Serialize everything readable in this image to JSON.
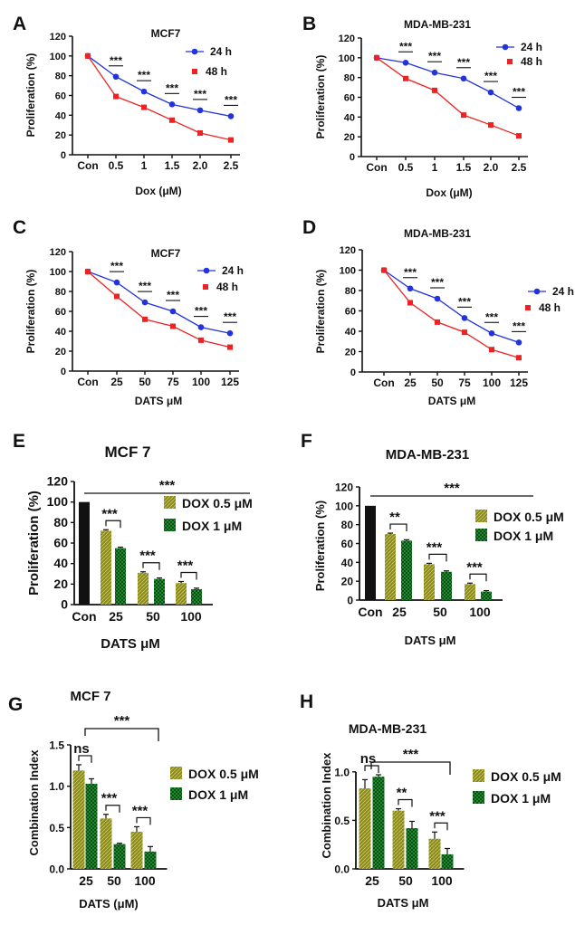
{
  "chart_data": [
    {
      "panel": "A",
      "type": "line",
      "title": "MCF7",
      "xlabel": "Dox (μM)",
      "ylabel": "Proliferation (%)",
      "categories": [
        "Con",
        "0.5",
        "1",
        "1.5",
        "2.0",
        "2.5"
      ],
      "ylim": [
        0,
        120
      ],
      "yticks": [
        "0",
        "20",
        "40",
        "60",
        "80",
        "100",
        "120"
      ],
      "series": [
        {
          "name": "24 h",
          "color": "#2233dd",
          "marker": "circle",
          "values": [
            100,
            79,
            64,
            51,
            45,
            39
          ]
        },
        {
          "name": "48 h",
          "color": "#ee2222",
          "marker": "square",
          "values": [
            100,
            59,
            48,
            35,
            22,
            15
          ]
        }
      ],
      "significance": [
        "***",
        "***",
        "***",
        "***",
        "***"
      ]
    },
    {
      "panel": "B",
      "type": "line",
      "title": "MDA-MB-231",
      "xlabel": "Dox (μM)",
      "ylabel": "Proliferation (%)",
      "categories": [
        "Con",
        "0.5",
        "1",
        "1.5",
        "2.0",
        "2.5"
      ],
      "ylim": [
        0,
        120
      ],
      "yticks": [
        "0",
        "20",
        "40",
        "60",
        "80",
        "100",
        "120"
      ],
      "series": [
        {
          "name": "24 h",
          "color": "#2233dd",
          "marker": "circle",
          "values": [
            100,
            95,
            85,
            79,
            65,
            49
          ]
        },
        {
          "name": "48 h",
          "color": "#ee2222",
          "marker": "square",
          "values": [
            100,
            79,
            67,
            42,
            32,
            21
          ]
        }
      ],
      "significance": [
        "***",
        "***",
        "***",
        "***",
        "***"
      ]
    },
    {
      "panel": "C",
      "type": "line",
      "title": "MCF7",
      "xlabel": "DATS μM",
      "ylabel": "Proliferation (%)",
      "categories": [
        "Con",
        "25",
        "50",
        "75",
        "100",
        "125"
      ],
      "ylim": [
        0,
        120
      ],
      "yticks": [
        "0",
        "20",
        "40",
        "60",
        "80",
        "100",
        "120"
      ],
      "series": [
        {
          "name": "24 h",
          "color": "#2233dd",
          "marker": "circle",
          "values": [
            100,
            89,
            69,
            60,
            44,
            38
          ]
        },
        {
          "name": "48 h",
          "color": "#ee2222",
          "marker": "square",
          "values": [
            100,
            75,
            52,
            45,
            31,
            24
          ]
        }
      ],
      "significance": [
        "***",
        "***",
        "***",
        "***",
        "***"
      ]
    },
    {
      "panel": "D",
      "type": "line",
      "title": "MDA-MB-231",
      "xlabel": "DATS μM",
      "ylabel": "Proliferation (%)",
      "categories": [
        "Con",
        "25",
        "50",
        "75",
        "100",
        "125"
      ],
      "ylim": [
        0,
        120
      ],
      "yticks": [
        "0",
        "20",
        "40",
        "60",
        "80",
        "100",
        "120"
      ],
      "series": [
        {
          "name": "24 h",
          "color": "#2233dd",
          "marker": "circle",
          "values": [
            100,
            82,
            72,
            53,
            38,
            29
          ]
        },
        {
          "name": "48 h",
          "color": "#ee2222",
          "marker": "square",
          "values": [
            100,
            68,
            49,
            39,
            22,
            14
          ]
        }
      ],
      "significance": [
        "***",
        "***",
        "***",
        "***",
        "***"
      ]
    },
    {
      "panel": "E",
      "type": "bar",
      "title": "MCF 7",
      "xlabel": "DATS μM",
      "ylabel": "Proliferation (%)",
      "control_label": "Con",
      "control_value": 100,
      "categories": [
        "25",
        "50",
        "100"
      ],
      "ylim": [
        0,
        120
      ],
      "yticks": [
        "0",
        "20",
        "40",
        "60",
        "80",
        "100",
        "120"
      ],
      "series": [
        {
          "name": "DOX 0.5 μM",
          "values": [
            72,
            31,
            21
          ],
          "errors": [
            1,
            1,
            1.5
          ]
        },
        {
          "name": "DOX 1 μM",
          "values": [
            55,
            25,
            15
          ],
          "errors": [
            1,
            1,
            1
          ]
        }
      ],
      "significance": [
        "***",
        "***",
        "***"
      ],
      "overall_significance": "***"
    },
    {
      "panel": "F",
      "type": "bar",
      "title": "MDA-MB-231",
      "xlabel": "DATS μM",
      "ylabel": "Proliferation (%)",
      "control_label": "Con",
      "control_value": 100,
      "categories": [
        "25",
        "50",
        "100"
      ],
      "ylim": [
        0,
        120
      ],
      "yticks": [
        "0",
        "20",
        "40",
        "60",
        "80",
        "100",
        "120"
      ],
      "series": [
        {
          "name": "DOX 0.5 μM",
          "values": [
            70,
            38,
            17
          ],
          "errors": [
            1,
            1,
            1
          ]
        },
        {
          "name": "DOX 1 μM",
          "values": [
            63,
            30,
            9
          ],
          "errors": [
            1,
            1,
            1
          ]
        }
      ],
      "significance": [
        "**",
        "***",
        "***"
      ],
      "overall_significance": "***"
    },
    {
      "panel": "G",
      "type": "bar",
      "title": "MCF 7",
      "xlabel": "DATS (μM)",
      "ylabel": "Combination Index",
      "categories": [
        "25",
        "50",
        "100"
      ],
      "ylim": [
        0,
        1.5
      ],
      "yticks": [
        "0.0",
        "0.5",
        "1.0",
        "1.5"
      ],
      "series": [
        {
          "name": "DOX 0.5 μM",
          "values": [
            1.19,
            0.61,
            0.45
          ],
          "errors": [
            0.07,
            0.05,
            0.06
          ]
        },
        {
          "name": "DOX 1 μM",
          "values": [
            1.03,
            0.3,
            0.21
          ],
          "errors": [
            0.06,
            0.01,
            0.06
          ]
        }
      ],
      "significance": [
        "ns",
        "***",
        "***"
      ],
      "overall_significance": "***"
    },
    {
      "panel": "H",
      "type": "bar",
      "title": "MDA-MB-231",
      "xlabel": "DATS μM",
      "ylabel": "Combination Index",
      "categories": [
        "25",
        "50",
        "100"
      ],
      "ylim": [
        0,
        1.25
      ],
      "yticks": [
        "0.0",
        "0.5",
        "1.0"
      ],
      "series": [
        {
          "name": "DOX 0.5 μM",
          "values": [
            0.83,
            0.6,
            0.31
          ],
          "errors": [
            0.09,
            0.02,
            0.07
          ]
        },
        {
          "name": "DOX 1 μM",
          "values": [
            0.95,
            0.42,
            0.15
          ],
          "errors": [
            0.02,
            0.07,
            0.06
          ]
        }
      ],
      "significance": [
        "ns",
        "**",
        "***"
      ],
      "overall_significance": "***"
    }
  ]
}
